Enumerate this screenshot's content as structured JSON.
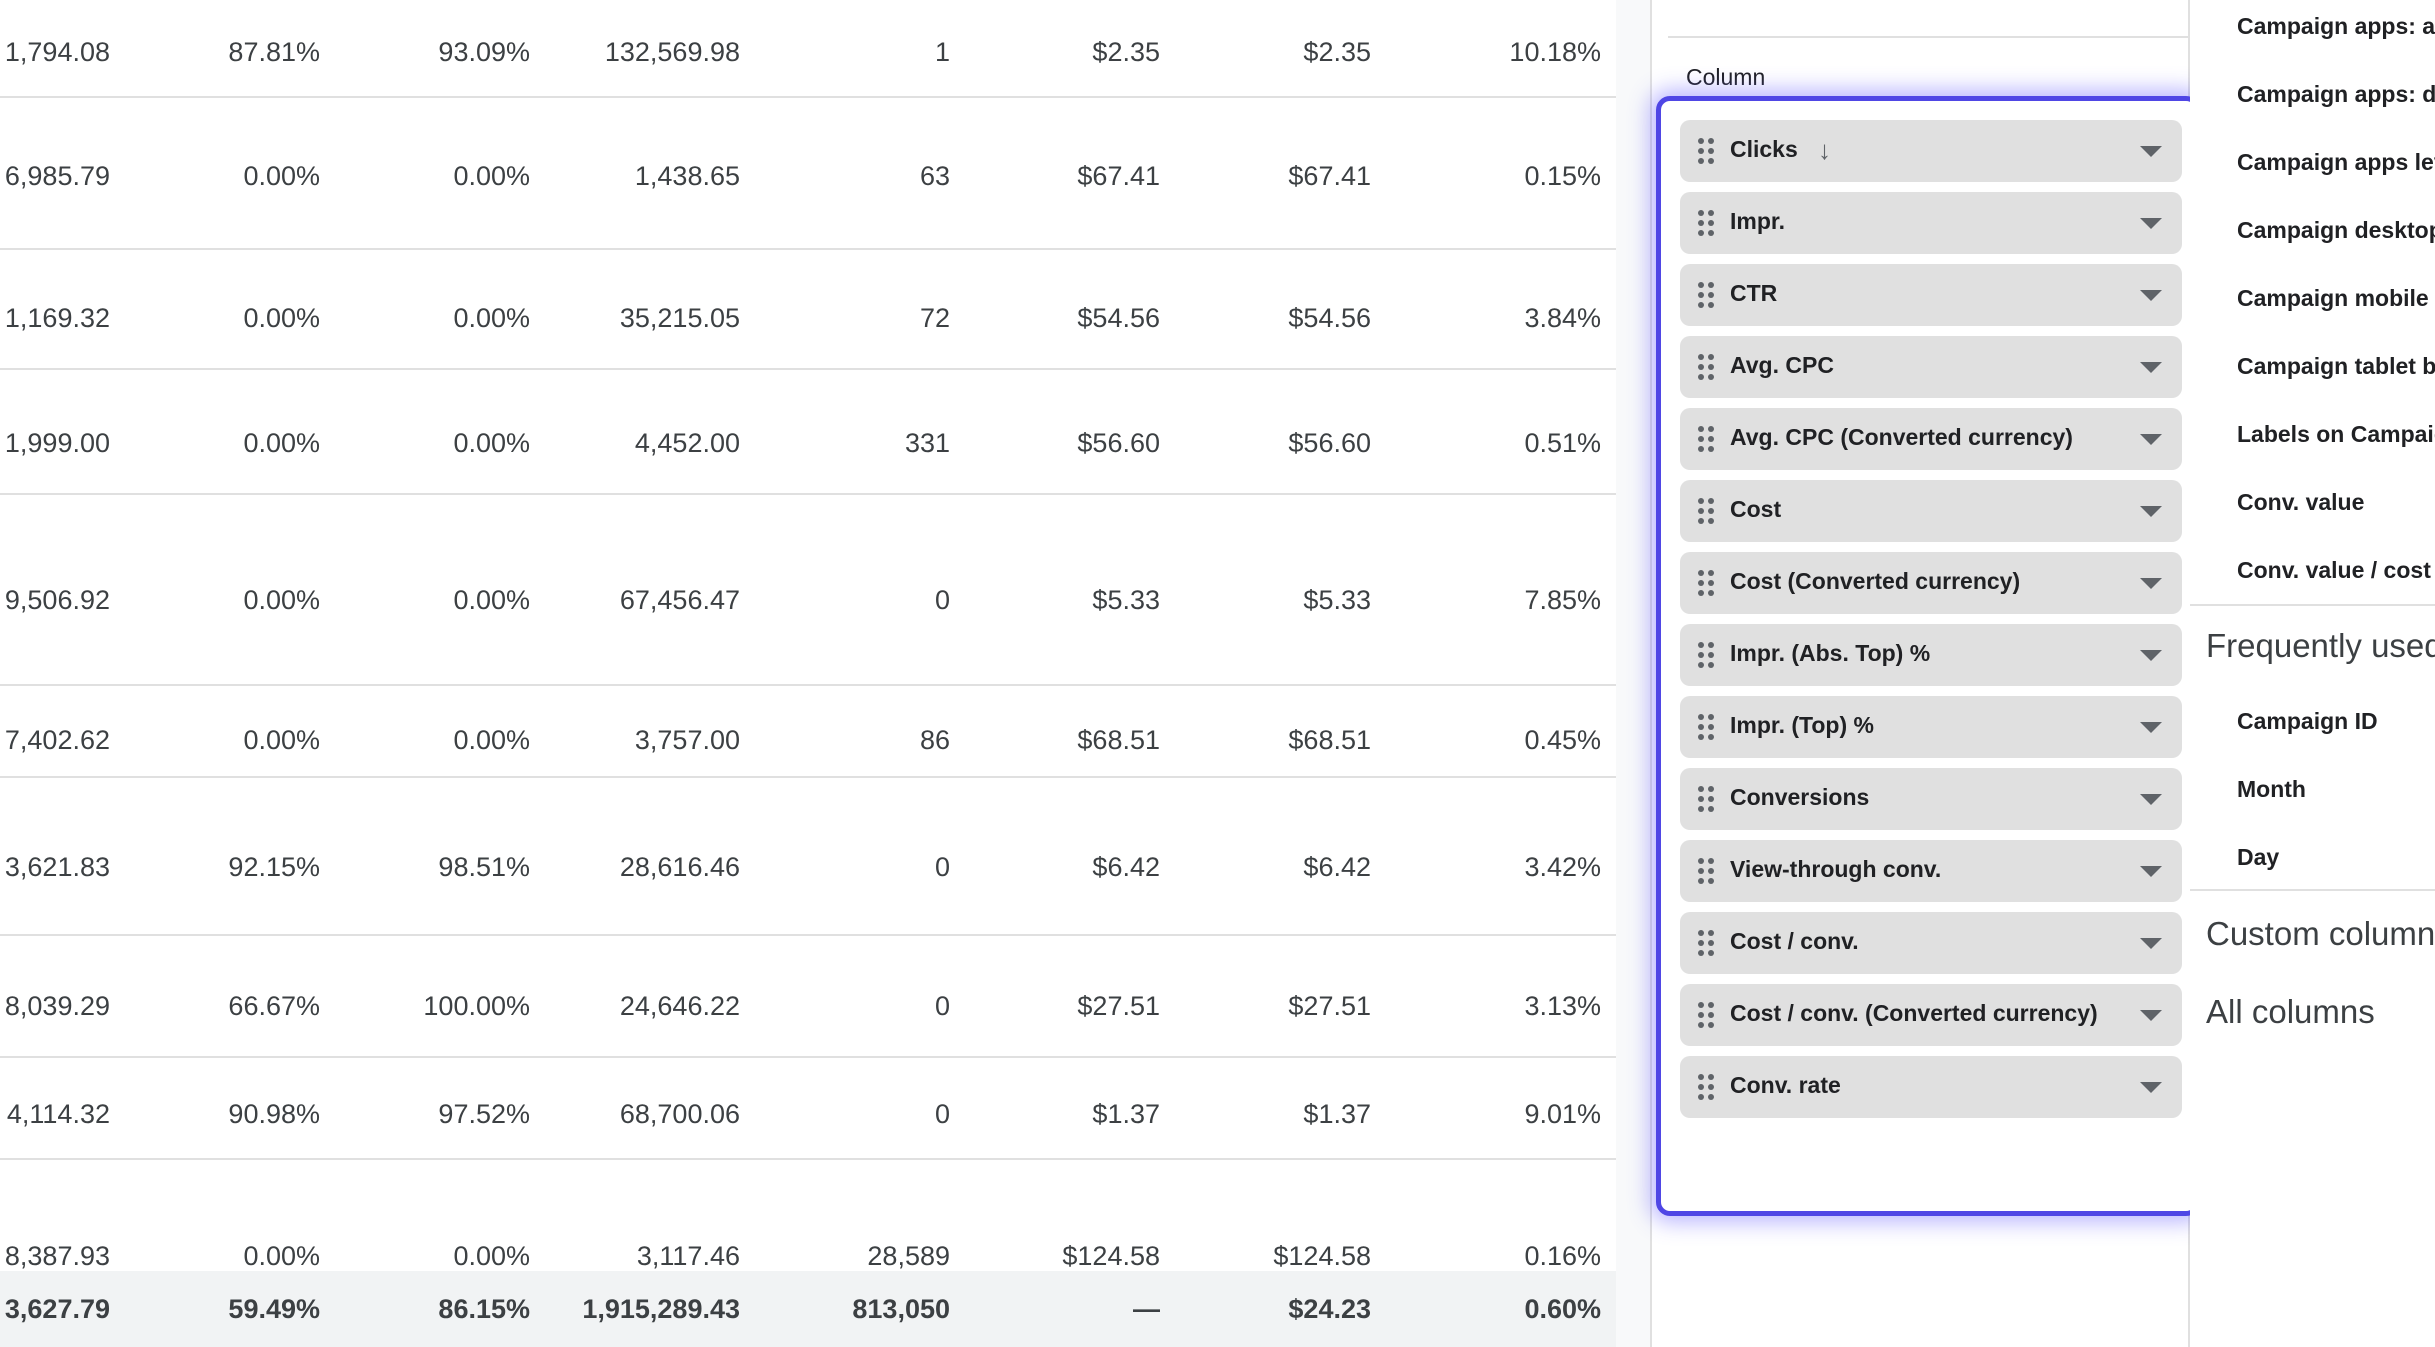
{
  "table": {
    "rows": [
      [
        "1,794.08",
        "87.81%",
        "93.09%",
        "132,569.98",
        "1",
        "$2.35",
        "$2.35",
        "10.18%"
      ],
      [
        "6,985.79",
        "0.00%",
        "0.00%",
        "1,438.65",
        "63",
        "$67.41",
        "$67.41",
        "0.15%"
      ],
      [
        "1,169.32",
        "0.00%",
        "0.00%",
        "35,215.05",
        "72",
        "$54.56",
        "$54.56",
        "3.84%"
      ],
      [
        "1,999.00",
        "0.00%",
        "0.00%",
        "4,452.00",
        "331",
        "$56.60",
        "$56.60",
        "0.51%"
      ],
      [
        "9,506.92",
        "0.00%",
        "0.00%",
        "67,456.47",
        "0",
        "$5.33",
        "$5.33",
        "7.85%"
      ],
      [
        "7,402.62",
        "0.00%",
        "0.00%",
        "3,757.00",
        "86",
        "$68.51",
        "$68.51",
        "0.45%"
      ],
      [
        "3,621.83",
        "92.15%",
        "98.51%",
        "28,616.46",
        "0",
        "$6.42",
        "$6.42",
        "3.42%"
      ],
      [
        "8,039.29",
        "66.67%",
        "100.00%",
        "24,646.22",
        "0",
        "$27.51",
        "$27.51",
        "3.13%"
      ],
      [
        "4,114.32",
        "90.98%",
        "97.52%",
        "68,700.06",
        "0",
        "$1.37",
        "$1.37",
        "9.01%"
      ],
      [
        "8,387.93",
        "0.00%",
        "0.00%",
        "3,117.46",
        "28,589",
        "$124.58",
        "$124.58",
        "0.16%"
      ]
    ],
    "totals": [
      "3,627.79",
      "59.49%",
      "86.15%",
      "1,915,289.43",
      "813,050",
      "—",
      "$24.23",
      "0.60%"
    ]
  },
  "column_panel": {
    "title": "Column",
    "sort_icon": "arrow-down-icon",
    "chips": [
      {
        "label": "Clicks",
        "sorted": true
      },
      {
        "label": "Impr."
      },
      {
        "label": "CTR"
      },
      {
        "label": "Avg. CPC"
      },
      {
        "label": "Avg. CPC (Converted currency)"
      },
      {
        "label": "Cost"
      },
      {
        "label": "Cost (Converted currency)"
      },
      {
        "label": "Impr. (Abs. Top) %"
      },
      {
        "label": "Impr. (Top) %"
      },
      {
        "label": "Conversions"
      },
      {
        "label": "View-through conv."
      },
      {
        "label": "Cost / conv."
      },
      {
        "label": "Cost / conv. (Converted currency)"
      },
      {
        "label": "Conv. rate"
      }
    ],
    "highlight_color": "#4f46e5"
  },
  "right_list": {
    "items_top": [
      "Campaign apps: ac",
      "Campaign apps: di",
      "Campaign apps lev",
      "Campaign desktop",
      "Campaign mobile b",
      "Campaign tablet bi",
      "Labels on Campaig",
      "Conv. value",
      "Conv. value / cost"
    ],
    "frequently_used_heading": "Frequently used",
    "frequently_used_items": [
      "Campaign ID",
      "Month",
      "Day"
    ],
    "custom_columns_heading": "Custom columns",
    "all_columns_heading": "All columns"
  }
}
